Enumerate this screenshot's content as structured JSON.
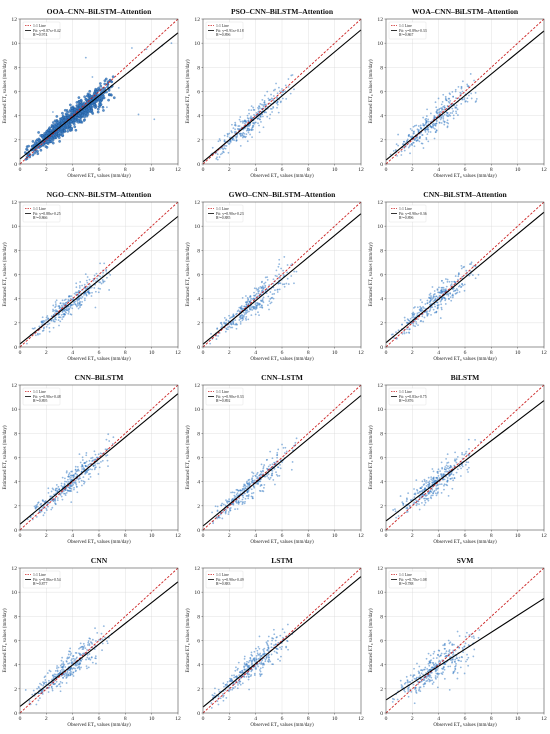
{
  "colors": {
    "scatter": "#3a7dc4",
    "fit_line": "#000000",
    "one_to_one": "#cc2222",
    "grid": "#d9d9d9"
  },
  "chart_data": [
    {
      "type": "scatter",
      "title": "OOA–CNN–BiLSTM–Attention",
      "xlabel": "Observed ET₀ values (mm/day)",
      "ylabel": "Estimated ET₀ values (mm/day)",
      "xlim": [
        0,
        12
      ],
      "ylim": [
        0,
        12
      ],
      "xticks": [
        0,
        2,
        4,
        6,
        8,
        10,
        12
      ],
      "yticks": [
        0,
        2,
        4,
        6,
        8,
        10,
        12
      ],
      "grid": true,
      "legend_position": "top-left",
      "legend": [
        "1:1 Line",
        "Fit: y=0.87x+0.42",
        "R²=0.974"
      ],
      "fit": {
        "slope": 0.87,
        "intercept": 0.42
      },
      "r2": 0.974,
      "series_name": "",
      "point_cloud": {
        "x_range": [
          0.3,
          7.2
        ],
        "spread": 0.45,
        "n": 900,
        "seed": 11
      },
      "outliers": [
        [
          8.5,
          9.6
        ],
        [
          9.6,
          9.5
        ],
        [
          10.8,
          9.8
        ],
        [
          11.5,
          10.0
        ],
        [
          5.5,
          7.2
        ],
        [
          6.6,
          4.7
        ],
        [
          2.5,
          4.3
        ],
        [
          5.0,
          8.8
        ],
        [
          7.5,
          6.3
        ],
        [
          7.0,
          6.8
        ],
        [
          6.8,
          6.2
        ],
        [
          3.2,
          3.0
        ],
        [
          9.0,
          4.1
        ],
        [
          10.2,
          3.7
        ]
      ]
    },
    {
      "type": "scatter",
      "title": "PSO–CNN–BiLSTM–Attention",
      "xlabel": "Observed ET₀ values (mm/day)",
      "ylabel": "Estimated ET₀ values (mm/day)",
      "xlim": [
        0,
        12
      ],
      "ylim": [
        0,
        12
      ],
      "xticks": [
        0,
        2,
        4,
        6,
        8,
        10,
        12
      ],
      "yticks": [
        0,
        2,
        4,
        6,
        8,
        10,
        12
      ],
      "grid": true,
      "legend_position": "top-left",
      "legend": [
        "1:1 Line",
        "Fit: y=0.91x+0.18",
        "R²=0.896"
      ],
      "fit": {
        "slope": 0.91,
        "intercept": 0.18
      },
      "r2": 0.896,
      "point_cloud": {
        "x_range": [
          0.3,
          7.2
        ],
        "spread": 0.55,
        "n": 320,
        "seed": 22
      },
      "outliers": []
    },
    {
      "type": "scatter",
      "title": "WOA–CNN–BiLSTM–Attention",
      "xlabel": "Observed ET₀ values (mm/day)",
      "ylabel": "Estimated ET₀ values (mm/day)",
      "xlim": [
        0,
        12
      ],
      "ylim": [
        0,
        12
      ],
      "xticks": [
        0,
        2,
        4,
        6,
        8,
        10,
        12
      ],
      "yticks": [
        0,
        2,
        4,
        6,
        8,
        10,
        12
      ],
      "grid": true,
      "legend_position": "top-left",
      "legend": [
        "1:1 Line",
        "Fit: y=0.89x+0.33",
        "R²=0.867"
      ],
      "fit": {
        "slope": 0.89,
        "intercept": 0.33
      },
      "r2": 0.867,
      "point_cloud": {
        "x_range": [
          0.3,
          7.2
        ],
        "spread": 0.6,
        "n": 320,
        "seed": 33
      },
      "outliers": []
    },
    {
      "type": "scatter",
      "title": "NGO–CNN–BiLSTM–Attention",
      "xlabel": "Observed ET₀ values (mm/day)",
      "ylabel": "Estimated ET₀ values (mm/day)",
      "xlim": [
        0,
        12
      ],
      "ylim": [
        0,
        12
      ],
      "xticks": [
        0,
        2,
        4,
        6,
        8,
        10,
        12
      ],
      "yticks": [
        0,
        2,
        4,
        6,
        8,
        10,
        12
      ],
      "grid": true,
      "legend_position": "top-left",
      "legend": [
        "1:1 Line",
        "Fit: y=0.88x+0.25",
        "R²=0.866"
      ],
      "fit": {
        "slope": 0.88,
        "intercept": 0.25
      },
      "r2": 0.866,
      "point_cloud": {
        "x_range": [
          0.3,
          7.2
        ],
        "spread": 0.55,
        "n": 320,
        "seed": 44
      },
      "outliers": []
    },
    {
      "type": "scatter",
      "title": "GWO–CNN–BiLSTM–Attention",
      "xlabel": "Observed ET₀ values (mm/day)",
      "ylabel": "Estimated ET₀ values (mm/day)",
      "xlim": [
        0,
        12
      ],
      "ylim": [
        0,
        12
      ],
      "xticks": [
        0,
        2,
        4,
        6,
        8,
        10,
        12
      ],
      "yticks": [
        0,
        2,
        4,
        6,
        8,
        10,
        12
      ],
      "grid": true,
      "legend_position": "top-left",
      "legend": [
        "1:1 Line",
        "Fit: y=0.90x+0.23",
        "R²=0.885"
      ],
      "fit": {
        "slope": 0.9,
        "intercept": 0.23
      },
      "r2": 0.885,
      "point_cloud": {
        "x_range": [
          0.3,
          7.2
        ],
        "spread": 0.55,
        "n": 320,
        "seed": 55
      },
      "outliers": []
    },
    {
      "type": "scatter",
      "title": "CNN–BiLSTM–Attention",
      "xlabel": "Observed ET₀ values (mm/day)",
      "ylabel": "Estimated ET₀ values (mm/day)",
      "xlim": [
        0,
        12
      ],
      "ylim": [
        0,
        12
      ],
      "xticks": [
        0,
        2,
        4,
        6,
        8,
        10,
        12
      ],
      "yticks": [
        0,
        2,
        4,
        6,
        8,
        10,
        12
      ],
      "grid": true,
      "legend_position": "top-left",
      "legend": [
        "1:1 Line",
        "Fit: y=0.90x+0.36",
        "R²=0.896"
      ],
      "fit": {
        "slope": 0.9,
        "intercept": 0.36
      },
      "r2": 0.896,
      "point_cloud": {
        "x_range": [
          0.3,
          7.2
        ],
        "spread": 0.55,
        "n": 320,
        "seed": 66
      },
      "outliers": []
    },
    {
      "type": "scatter",
      "title": "CNN–BiLSTM",
      "xlabel": "Observed ET₀ values (mm/day)",
      "ylabel": "Estimated ET₀ values (mm/day)",
      "xlim": [
        0,
        12
      ],
      "ylim": [
        0,
        12
      ],
      "xticks": [
        0,
        2,
        4,
        6,
        8,
        10,
        12
      ],
      "yticks": [
        0,
        2,
        4,
        6,
        8,
        10,
        12
      ],
      "grid": true,
      "legend_position": "top-left",
      "legend": [
        "1:1 Line",
        "Fit: y=0.90x+0.48",
        "R²=0.895"
      ],
      "fit": {
        "slope": 0.9,
        "intercept": 0.48
      },
      "r2": 0.895,
      "point_cloud": {
        "x_range": [
          0.3,
          7.2
        ],
        "spread": 0.55,
        "n": 320,
        "seed": 77
      },
      "outliers": []
    },
    {
      "type": "scatter",
      "title": "CNN–LSTM",
      "xlabel": "Observed ET₀ values (mm/day)",
      "ylabel": "Estimated ET₀ values (mm/day)",
      "xlim": [
        0,
        12
      ],
      "ylim": [
        0,
        12
      ],
      "xticks": [
        0,
        2,
        4,
        6,
        8,
        10,
        12
      ],
      "yticks": [
        0,
        2,
        4,
        6,
        8,
        10,
        12
      ],
      "grid": true,
      "legend_position": "top-left",
      "legend": [
        "1:1 Line",
        "Fit: y=0.90x+0.33",
        "R²=0.892"
      ],
      "fit": {
        "slope": 0.9,
        "intercept": 0.33
      },
      "r2": 0.892,
      "point_cloud": {
        "x_range": [
          0.3,
          7.2
        ],
        "spread": 0.55,
        "n": 320,
        "seed": 88
      },
      "outliers": []
    },
    {
      "type": "scatter",
      "title": "BiLSTM",
      "xlabel": "Observed ET₀ values (mm/day)",
      "ylabel": "Estimated ET₀ values (mm/day)",
      "xlim": [
        0,
        12
      ],
      "ylim": [
        0,
        12
      ],
      "xticks": [
        0,
        2,
        4,
        6,
        8,
        10,
        12
      ],
      "yticks": [
        0,
        2,
        4,
        6,
        8,
        10,
        12
      ],
      "grid": true,
      "legend_position": "top-left",
      "legend": [
        "1:1 Line",
        "Fit: y=0.83x+0.75",
        "R²=0.876"
      ],
      "fit": {
        "slope": 0.83,
        "intercept": 0.75
      },
      "r2": 0.876,
      "point_cloud": {
        "x_range": [
          0.3,
          7.2
        ],
        "spread": 0.6,
        "n": 320,
        "seed": 99
      },
      "outliers": []
    },
    {
      "type": "scatter",
      "title": "CNN",
      "xlabel": "Observed ET₀ values (mm/day)",
      "ylabel": "Estimated ET₀ values (mm/day)",
      "xlim": [
        0,
        12
      ],
      "ylim": [
        0,
        12
      ],
      "xticks": [
        0,
        2,
        4,
        6,
        8,
        10,
        12
      ],
      "yticks": [
        0,
        2,
        4,
        6,
        8,
        10,
        12
      ],
      "grid": true,
      "legend_position": "top-left",
      "legend": [
        "1:1 Line",
        "Fit: y=0.86x+0.54",
        "R²=0.877"
      ],
      "fit": {
        "slope": 0.86,
        "intercept": 0.54
      },
      "r2": 0.877,
      "point_cloud": {
        "x_range": [
          0.3,
          7.2
        ],
        "spread": 0.6,
        "n": 320,
        "seed": 111
      },
      "outliers": []
    },
    {
      "type": "scatter",
      "title": "LSTM",
      "xlabel": "Observed ET₀ values (mm/day)",
      "ylabel": "Estimated ET₀ values (mm/day)",
      "xlim": [
        0,
        12
      ],
      "ylim": [
        0,
        12
      ],
      "xticks": [
        0,
        2,
        4,
        6,
        8,
        10,
        12
      ],
      "yticks": [
        0,
        2,
        4,
        6,
        8,
        10,
        12
      ],
      "grid": true,
      "legend_position": "top-left",
      "legend": [
        "1:1 Line",
        "Fit: y=0.90x+0.49",
        "R²=0.883"
      ],
      "fit": {
        "slope": 0.9,
        "intercept": 0.49
      },
      "r2": 0.883,
      "point_cloud": {
        "x_range": [
          0.3,
          7.2
        ],
        "spread": 0.6,
        "n": 320,
        "seed": 122
      },
      "outliers": []
    },
    {
      "type": "scatter",
      "title": "SVM",
      "xlabel": "Observed ET₀ values (mm/day)",
      "ylabel": "Estimated ET₀ values (mm/day)",
      "xlim": [
        0,
        12
      ],
      "ylim": [
        0,
        12
      ],
      "xticks": [
        0,
        2,
        4,
        6,
        8,
        10,
        12
      ],
      "yticks": [
        0,
        2,
        4,
        6,
        8,
        10,
        12
      ],
      "grid": true,
      "legend_position": "top-left",
      "legend": [
        "1:1 Line",
        "Fit: y=0.70x+1.08",
        "R²=0.788"
      ],
      "fit": {
        "slope": 0.7,
        "intercept": 1.08
      },
      "r2": 0.788,
      "point_cloud": {
        "x_range": [
          0.3,
          7.2
        ],
        "spread": 0.7,
        "n": 320,
        "seed": 133
      },
      "outliers": []
    }
  ]
}
